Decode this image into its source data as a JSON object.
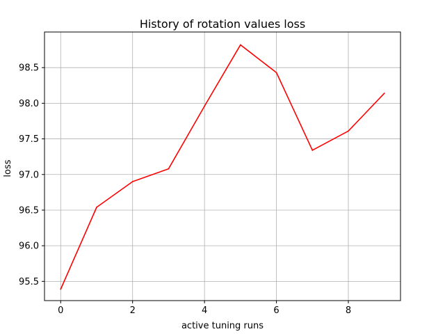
{
  "chart_data": {
    "type": "line",
    "title": "History of rotation values loss",
    "xlabel": "active tuning runs",
    "ylabel": "loss",
    "xlim": [
      -0.45,
      9.45
    ],
    "ylim": [
      95.23,
      99.0
    ],
    "xticks": [
      0,
      2,
      4,
      6,
      8
    ],
    "yticks": [
      95.5,
      96.0,
      96.5,
      97.0,
      97.5,
      98.0,
      98.5
    ],
    "ytick_labels": [
      "95.5",
      "96.0",
      "96.5",
      "97.0",
      "97.5",
      "98.0",
      "98.5"
    ],
    "grid": true,
    "series": [
      {
        "color": "#ff0000",
        "x": [
          0,
          1,
          2,
          3,
          4,
          5,
          6,
          7,
          8,
          9
        ],
        "values": [
          95.39,
          96.54,
          96.9,
          97.08,
          97.96,
          98.82,
          98.43,
          97.34,
          97.61,
          98.14
        ]
      }
    ]
  }
}
